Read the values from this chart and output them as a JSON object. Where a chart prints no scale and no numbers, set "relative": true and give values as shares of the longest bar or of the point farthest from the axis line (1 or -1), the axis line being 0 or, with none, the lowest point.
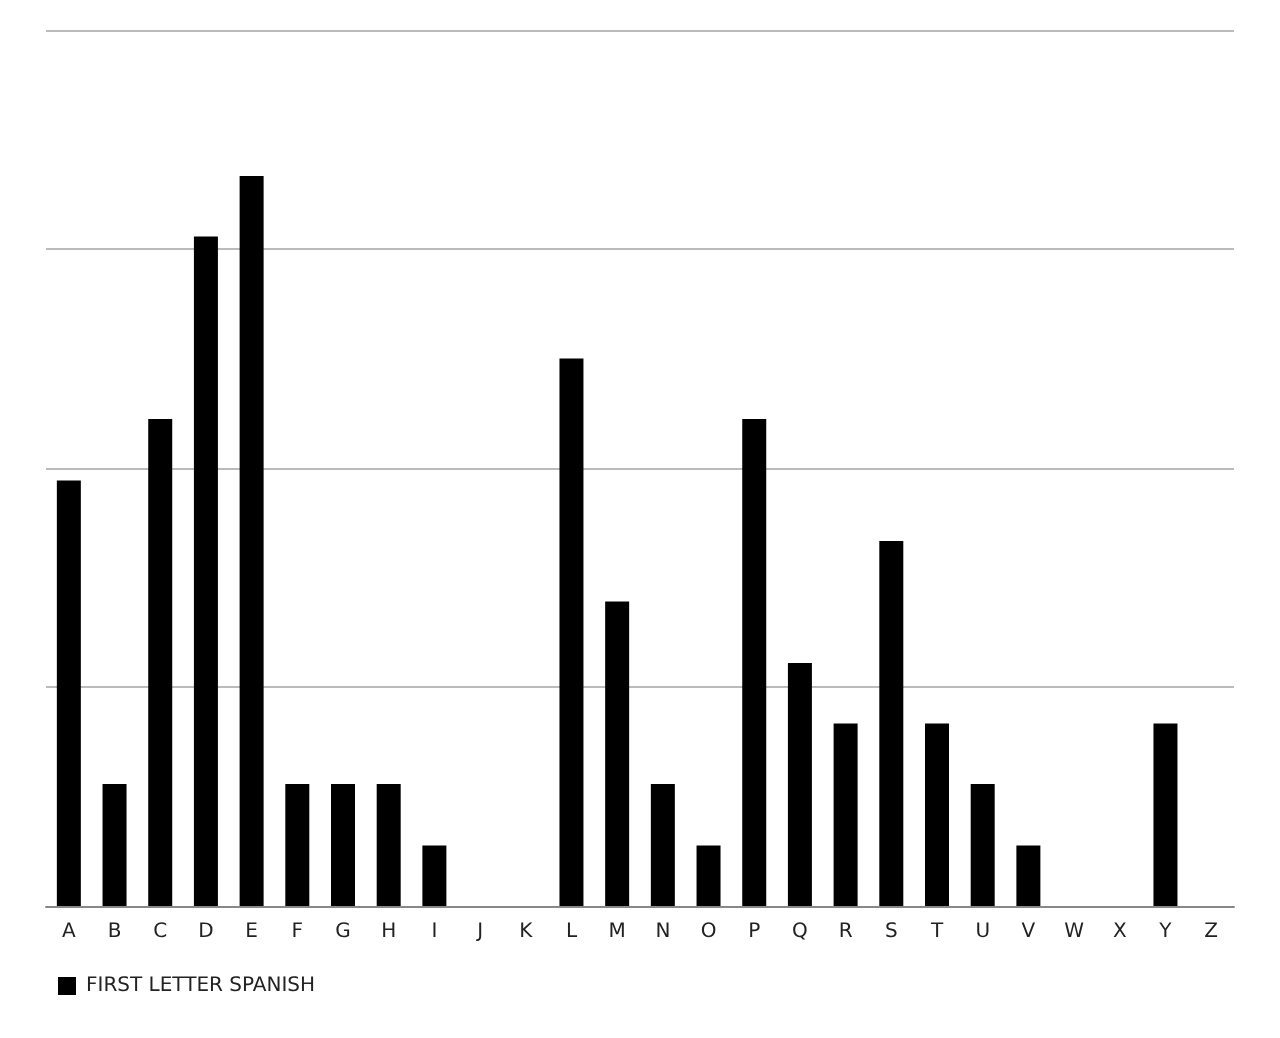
{
  "chart_data": {
    "type": "bar",
    "relative": true,
    "categories": [
      "A",
      "B",
      "C",
      "D",
      "E",
      "F",
      "G",
      "H",
      "I",
      "J",
      "K",
      "L",
      "M",
      "N",
      "O",
      "P",
      "Q",
      "R",
      "S",
      "T",
      "U",
      "V",
      "W",
      "X",
      "Y",
      "Z"
    ],
    "series": [
      {
        "name": "FIRST LETTER SPANISH",
        "color": "#000000",
        "values": [
          0.583,
          0.167,
          0.667,
          0.917,
          1,
          0.167,
          0.167,
          0.167,
          0.083,
          0,
          0,
          0.75,
          0.417,
          0.167,
          0.083,
          0.667,
          0.333,
          0.25,
          0.5,
          0.25,
          0.167,
          0.083,
          0,
          0,
          0.25,
          0
        ]
      }
    ],
    "grid": "y",
    "legend": "bottom left"
  }
}
